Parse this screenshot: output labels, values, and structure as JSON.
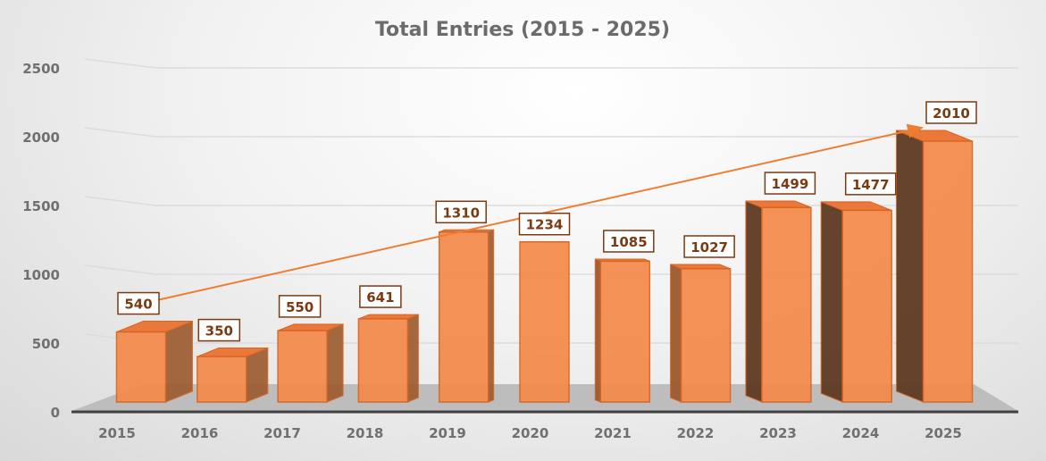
{
  "chart_data": {
    "type": "bar",
    "title": "Total Entries (2015 - 2025)",
    "xlabel": "",
    "ylabel": "",
    "categories": [
      "2015",
      "2016",
      "2017",
      "2018",
      "2019",
      "2020",
      "2021",
      "2022",
      "2023",
      "2024",
      "2025"
    ],
    "values": [
      540,
      350,
      550,
      641,
      1310,
      1234,
      1085,
      1027,
      1499,
      1477,
      2010
    ],
    "ylim": [
      0,
      2500
    ],
    "yticks": [
      0,
      500,
      1000,
      1500,
      2000,
      2500
    ],
    "grid": true,
    "trendline": {
      "type": "linear",
      "arrow": true
    },
    "colors": {
      "bar": "#f4894a",
      "bar_edge": "#d9641f",
      "side": "#9c5a2e",
      "dark_side": "#5e3a22",
      "label_text": "#7a3a12",
      "trend": "#ed7d31"
    }
  }
}
